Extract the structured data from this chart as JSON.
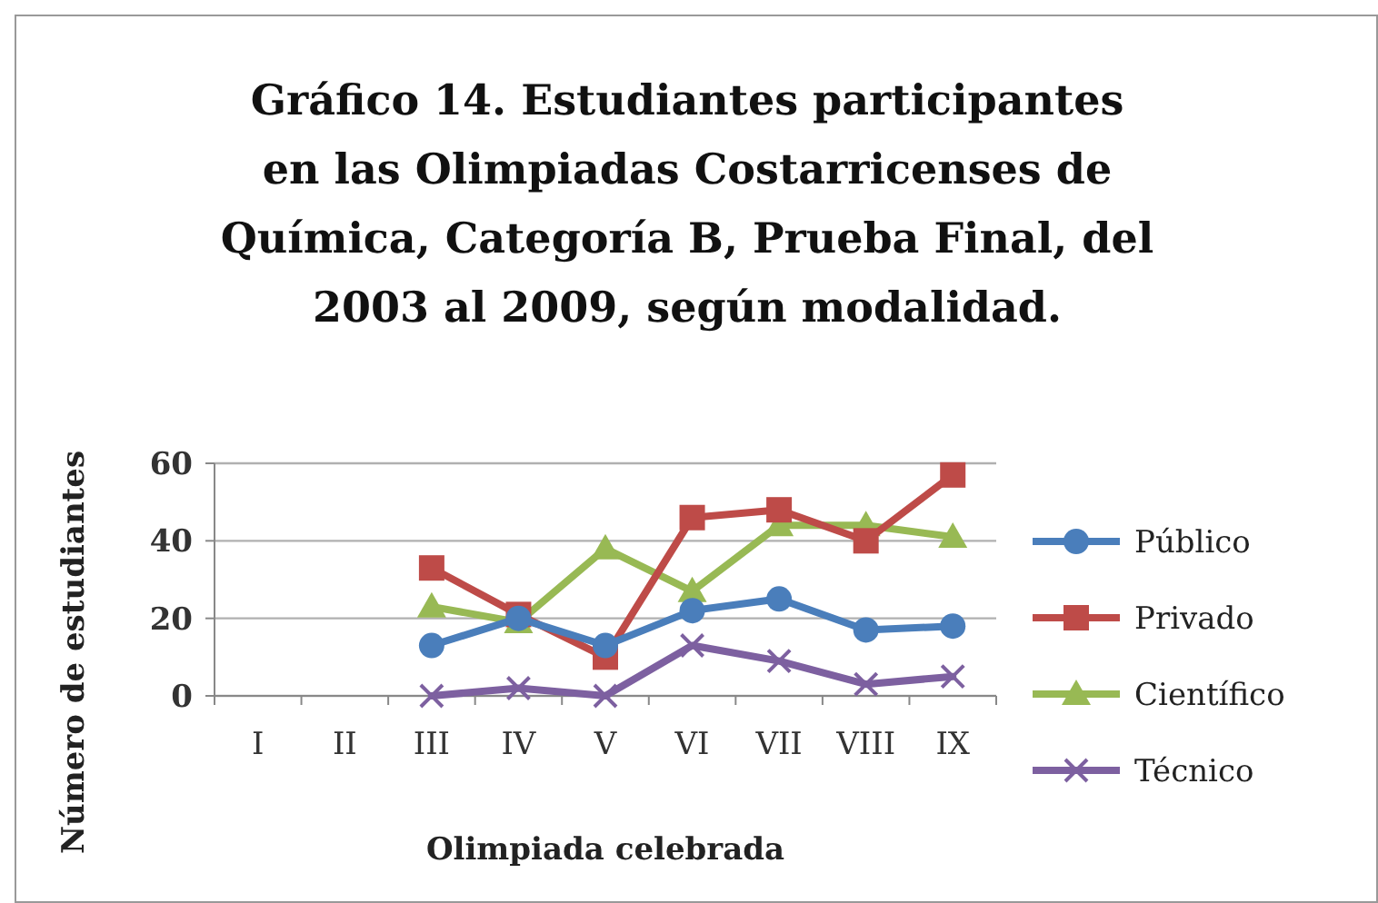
{
  "chart_data": {
    "type": "line",
    "title": "Gráfico  14.  Estudiantes participantes en las Olimpiadas Costarricenses de Química, Categoría B, Prueba Final, del 2003 al 2009, según modalidad.",
    "xlabel": "Olimpiada celebrada",
    "ylabel": "Número de estudiantes",
    "categories": [
      "I",
      "II",
      "III",
      "IV",
      "V",
      "VI",
      "VII",
      "VIII",
      "IX"
    ],
    "series": [
      {
        "name": "Público",
        "color": "#4a7ebb",
        "marker": "circle",
        "values": [
          null,
          null,
          13,
          20,
          13,
          22,
          25,
          17,
          18
        ]
      },
      {
        "name": "Privado",
        "color": "#be4b48",
        "marker": "square",
        "values": [
          null,
          null,
          33,
          21,
          10,
          46,
          48,
          40,
          57
        ]
      },
      {
        "name": "Científico",
        "color": "#98b954",
        "marker": "triangle",
        "values": [
          null,
          null,
          23,
          19,
          38,
          27,
          44,
          44,
          41
        ]
      },
      {
        "name": "Técnico",
        "color": "#7d60a0",
        "marker": "cross",
        "values": [
          null,
          null,
          0,
          2,
          0,
          13,
          9,
          3,
          5
        ]
      }
    ],
    "ylim": [
      0,
      60
    ],
    "yticks": [
      0,
      20,
      40,
      60
    ],
    "grid": "y",
    "legend": "right"
  }
}
